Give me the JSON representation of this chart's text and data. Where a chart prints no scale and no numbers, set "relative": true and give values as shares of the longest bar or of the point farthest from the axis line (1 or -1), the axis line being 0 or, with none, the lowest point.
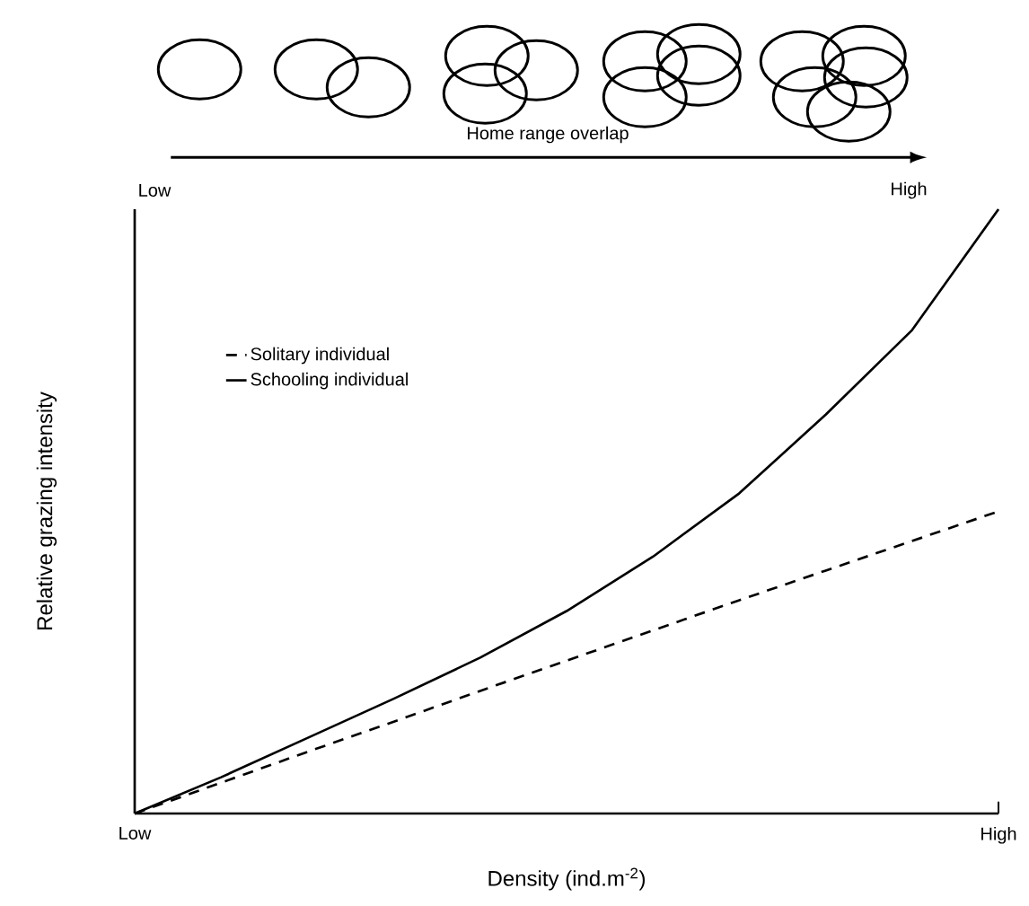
{
  "chart_data": {
    "type": "line",
    "relative": true,
    "xlabel": "Density (ind.m$^{-2}$)",
    "ylabel": "Relative grazing intensity",
    "legend": "top left",
    "categories": [
      "Low",
      null,
      null,
      null,
      null,
      null,
      null,
      null,
      null,
      null,
      "High"
    ],
    "series": [
      {
        "name": "Solitary individual",
        "color": "#000000",
        "line_style": "dashed",
        "values": [
          0,
          0.051,
          0.102,
          0.152,
          0.203,
          0.253,
          0.303,
          0.353,
          0.402,
          0.451,
          0.5
        ]
      },
      {
        "name": "Schooling individual",
        "color": "#000000",
        "line_style": "solid",
        "values": [
          0,
          0.06,
          0.125,
          0.19,
          0.258,
          0.335,
          0.425,
          0.53,
          0.66,
          0.8,
          1
        ]
      }
    ],
    "annotations": [
      "Home range overlap",
      "Low",
      "High"
    ]
  }
}
